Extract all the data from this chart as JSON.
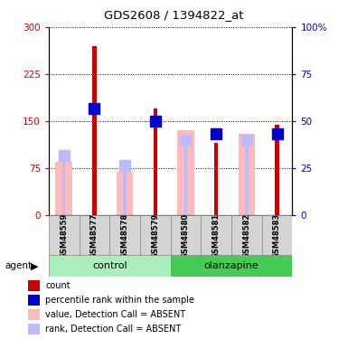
{
  "title": "GDS2608 / 1394822_at",
  "samples": [
    "GSM48559",
    "GSM48577",
    "GSM48578",
    "GSM48579",
    "GSM48580",
    "GSM48581",
    "GSM48582",
    "GSM48583"
  ],
  "count_values": [
    0,
    270,
    0,
    170,
    0,
    115,
    0,
    145
  ],
  "percentile_rank": [
    0,
    170,
    0,
    150,
    0,
    130,
    0,
    130
  ],
  "absent_value": [
    85,
    0,
    70,
    0,
    135,
    0,
    130,
    0
  ],
  "absent_rank": [
    95,
    0,
    80,
    0,
    120,
    0,
    120,
    0
  ],
  "count_color": "#cc0000",
  "percentile_color": "#0000cc",
  "absent_value_color": "#ffbbbb",
  "absent_rank_color": "#bbbbff",
  "ylim_left": [
    0,
    300
  ],
  "ylim_right": [
    0,
    100
  ],
  "yticks_left": [
    0,
    75,
    150,
    225,
    300
  ],
  "yticks_right": [
    0,
    25,
    50,
    75,
    100
  ],
  "ytick_labels_right": [
    "0",
    "25",
    "50",
    "75",
    "100%"
  ],
  "legend_items": [
    {
      "label": "count",
      "color": "#cc0000"
    },
    {
      "label": "percentile rank within the sample",
      "color": "#0000cc"
    },
    {
      "label": "value, Detection Call = ABSENT",
      "color": "#ffbbbb"
    },
    {
      "label": "rank, Detection Call = ABSENT",
      "color": "#bbbbff"
    }
  ]
}
